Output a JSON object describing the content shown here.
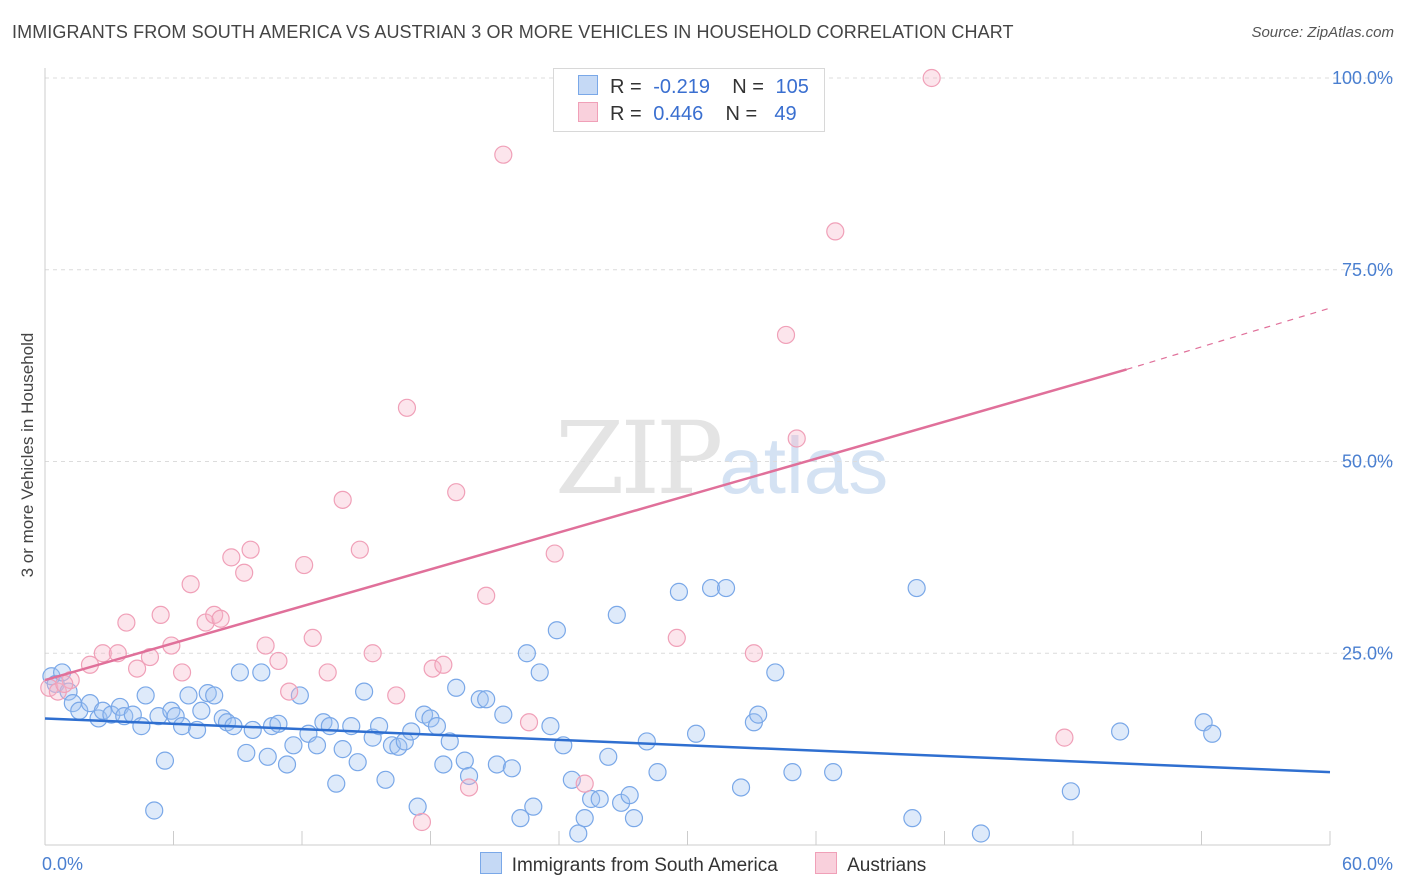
{
  "header": {
    "title": "IMMIGRANTS FROM SOUTH AMERICA VS AUSTRIAN 3 OR MORE VEHICLES IN HOUSEHOLD CORRELATION CHART",
    "source": "Source: ZipAtlas.com"
  },
  "watermark": {
    "zip": "ZIP",
    "atlas": "atlas"
  },
  "legend": {
    "series": [
      {
        "r_label": "R =",
        "r_value": "-0.219",
        "n_label": "N =",
        "n_value": "105",
        "color": "#7aa8e8"
      },
      {
        "r_label": "R =",
        "r_value": "0.446",
        "n_label": "N =",
        "n_value": "49",
        "color": "#f0a0b8"
      }
    ]
  },
  "chart_data": {
    "type": "scatter",
    "title": "IMMIGRANTS FROM SOUTH AMERICA VS AUSTRIAN 3 OR MORE VEHICLES IN HOUSEHOLD CORRELATION CHART",
    "xlabel": "",
    "ylabel": "3 or more Vehicles in Household",
    "xlim": [
      0,
      60
    ],
    "ylim": [
      0,
      100
    ],
    "x_tick_labels": [
      "0.0%",
      "60.0%"
    ],
    "y_ticks": [
      25,
      50,
      75,
      100
    ],
    "y_tick_labels": [
      "25.0%",
      "50.0%",
      "75.0%",
      "100.0%"
    ],
    "grid": true,
    "legend_position": "top-center",
    "series": [
      {
        "name": "Immigrants from South America",
        "color": "#7aa8e8",
        "line_color": "#2f6fd0",
        "trend": {
          "x": [
            0,
            60
          ],
          "y": [
            16.5,
            9.5
          ]
        },
        "points": [
          [
            0.3,
            22
          ],
          [
            0.5,
            21
          ],
          [
            0.8,
            22.5
          ],
          [
            1.1,
            20
          ],
          [
            1.3,
            18.5
          ],
          [
            1.6,
            17.5
          ],
          [
            2.1,
            18.5
          ],
          [
            2.5,
            16.5
          ],
          [
            2.7,
            17.5
          ],
          [
            3.1,
            17
          ],
          [
            3.5,
            18
          ],
          [
            3.7,
            16.8
          ],
          [
            4.1,
            17
          ],
          [
            4.5,
            15.5
          ],
          [
            4.7,
            19.5
          ],
          [
            5.1,
            4.5
          ],
          [
            5.3,
            16.8
          ],
          [
            5.6,
            11
          ],
          [
            5.9,
            17.5
          ],
          [
            6.1,
            16.8
          ],
          [
            6.4,
            15.5
          ],
          [
            6.7,
            19.5
          ],
          [
            7.1,
            15
          ],
          [
            7.3,
            17.5
          ],
          [
            7.6,
            19.8
          ],
          [
            7.9,
            19.5
          ],
          [
            8.3,
            16.5
          ],
          [
            8.5,
            16
          ],
          [
            8.8,
            15.5
          ],
          [
            9.1,
            22.5
          ],
          [
            9.4,
            12
          ],
          [
            9.7,
            15
          ],
          [
            10.1,
            22.5
          ],
          [
            10.4,
            11.5
          ],
          [
            10.6,
            15.5
          ],
          [
            10.9,
            15.8
          ],
          [
            11.3,
            10.5
          ],
          [
            11.6,
            13
          ],
          [
            11.9,
            19.5
          ],
          [
            12.3,
            14.5
          ],
          [
            12.7,
            13
          ],
          [
            13,
            16
          ],
          [
            13.3,
            15.5
          ],
          [
            13.6,
            8
          ],
          [
            13.9,
            12.5
          ],
          [
            14.3,
            15.5
          ],
          [
            14.6,
            10.8
          ],
          [
            14.9,
            20
          ],
          [
            15.3,
            14
          ],
          [
            15.6,
            15.5
          ],
          [
            15.9,
            8.5
          ],
          [
            16.2,
            13
          ],
          [
            16.5,
            12.8
          ],
          [
            16.8,
            13.5
          ],
          [
            17.1,
            14.8
          ],
          [
            17.4,
            5
          ],
          [
            17.7,
            17
          ],
          [
            18,
            16.5
          ],
          [
            18.3,
            15.5
          ],
          [
            18.6,
            10.5
          ],
          [
            18.9,
            13.5
          ],
          [
            19.2,
            20.5
          ],
          [
            19.6,
            11
          ],
          [
            19.8,
            9
          ],
          [
            20.3,
            19
          ],
          [
            20.6,
            19
          ],
          [
            21.1,
            10.5
          ],
          [
            21.4,
            17
          ],
          [
            21.8,
            10
          ],
          [
            22.2,
            3.5
          ],
          [
            22.5,
            25
          ],
          [
            22.8,
            5
          ],
          [
            23.1,
            22.5
          ],
          [
            23.6,
            15.5
          ],
          [
            23.9,
            28
          ],
          [
            24.2,
            13
          ],
          [
            24.6,
            8.5
          ],
          [
            24.9,
            1.5
          ],
          [
            25.2,
            3.5
          ],
          [
            25.5,
            6
          ],
          [
            25.9,
            6
          ],
          [
            26.3,
            11.5
          ],
          [
            26.7,
            30
          ],
          [
            26.9,
            5.5
          ],
          [
            27.3,
            6.5
          ],
          [
            27.5,
            3.5
          ],
          [
            28.1,
            13.5
          ],
          [
            28.6,
            9.5
          ],
          [
            29.6,
            33
          ],
          [
            30.4,
            14.5
          ],
          [
            31.1,
            33.5
          ],
          [
            31.8,
            33.5
          ],
          [
            32.5,
            7.5
          ],
          [
            33.1,
            16
          ],
          [
            33.3,
            17
          ],
          [
            34.1,
            22.5
          ],
          [
            34.9,
            9.5
          ],
          [
            36.8,
            9.5
          ],
          [
            40.5,
            3.5
          ],
          [
            40.7,
            33.5
          ],
          [
            43.7,
            1.5
          ],
          [
            47.9,
            7
          ],
          [
            54.1,
            16
          ],
          [
            54.5,
            14.5
          ],
          [
            50.2,
            14.8
          ]
        ]
      },
      {
        "name": "Austrians",
        "color": "#f0a0b8",
        "line_color": "#e0709a",
        "trend": {
          "x": [
            0,
            50.5
          ],
          "y": [
            21.5,
            62
          ]
        },
        "trend_dashed": {
          "x": [
            50.5,
            60
          ],
          "y": [
            62,
            70
          ]
        },
        "points": [
          [
            0.2,
            20.5
          ],
          [
            0.6,
            20
          ],
          [
            1.2,
            21.5
          ],
          [
            2.1,
            23.5
          ],
          [
            2.7,
            25
          ],
          [
            3.4,
            25
          ],
          [
            3.8,
            29
          ],
          [
            4.3,
            23
          ],
          [
            4.9,
            24.5
          ],
          [
            5.4,
            30
          ],
          [
            5.9,
            26
          ],
          [
            6.4,
            22.5
          ],
          [
            6.8,
            34
          ],
          [
            7.5,
            29
          ],
          [
            7.9,
            30
          ],
          [
            8.2,
            29.5
          ],
          [
            8.7,
            37.5
          ],
          [
            9.3,
            35.5
          ],
          [
            9.6,
            38.5
          ],
          [
            10.3,
            26
          ],
          [
            10.9,
            24
          ],
          [
            11.4,
            20
          ],
          [
            12.1,
            36.5
          ],
          [
            12.5,
            27
          ],
          [
            13.2,
            22.5
          ],
          [
            13.9,
            45
          ],
          [
            14.7,
            38.5
          ],
          [
            15.3,
            25
          ],
          [
            16.4,
            19.5
          ],
          [
            16.9,
            57
          ],
          [
            17.6,
            3
          ],
          [
            18.1,
            23
          ],
          [
            18.6,
            23.5
          ],
          [
            19.2,
            46
          ],
          [
            19.8,
            7.5
          ],
          [
            20.6,
            32.5
          ],
          [
            21.4,
            90
          ],
          [
            22.6,
            16
          ],
          [
            23.8,
            38
          ],
          [
            25.2,
            8
          ],
          [
            27.6,
            100
          ],
          [
            29.5,
            27
          ],
          [
            33.1,
            25
          ],
          [
            34.6,
            66.5
          ],
          [
            35.1,
            53
          ],
          [
            36.9,
            80
          ],
          [
            41.4,
            100
          ],
          [
            47.6,
            14
          ],
          [
            0.9,
            21
          ]
        ]
      }
    ]
  }
}
